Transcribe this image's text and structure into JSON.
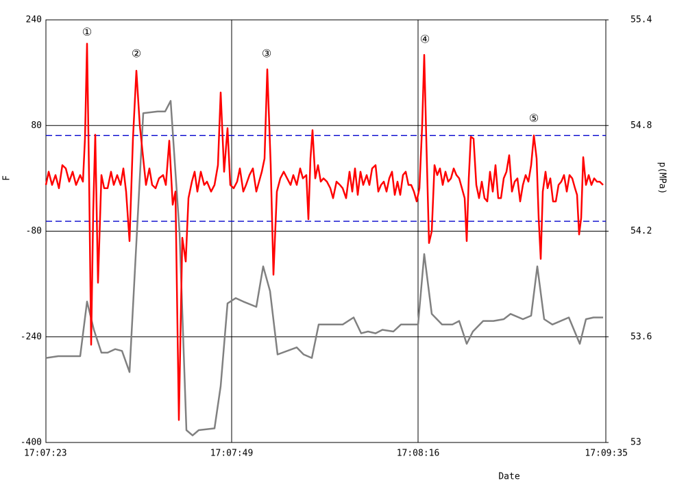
{
  "chart_data": {
    "type": "line",
    "x_label": "Date",
    "y_label": "F",
    "y2_label": "p(MPa)",
    "xlim": [
      0,
      817
    ],
    "xticks": [
      {
        "value": 0,
        "label": "17:07:23"
      },
      {
        "value": 271,
        "label": "17:07:49"
      },
      {
        "value": 543,
        "label": "17:08:16"
      },
      {
        "value": 817,
        "label": "17:09:35"
      }
    ],
    "ylim": [
      -400,
      240
    ],
    "yticks": [
      -400,
      -240,
      -80,
      80,
      240
    ],
    "y2lim": [
      53,
      55.4
    ],
    "y2ticks": [
      53,
      53.6,
      54.2,
      54.8,
      55.4
    ],
    "grid": true,
    "grid_color": "#000000",
    "reference_lines": [
      65,
      -65
    ],
    "reference_color": "#0000cc",
    "series": [
      {
        "color": "#ff0000",
        "x": [
          0,
          4,
          9,
          14,
          19,
          24,
          29,
          34,
          39,
          44,
          50,
          54,
          57,
          60,
          63,
          66,
          69,
          72,
          76,
          81,
          85,
          90,
          95,
          99,
          104,
          109,
          113,
          117,
          122,
          127,
          132,
          137,
          142,
          146,
          151,
          155,
          160,
          165,
          171,
          175,
          180,
          185,
          189,
          194,
          199,
          204,
          208,
          213,
          217,
          221,
          226,
          231,
          235,
          241,
          246,
          251,
          255,
          260,
          265,
          269,
          274,
          279,
          283,
          288,
          292,
          297,
          302,
          307,
          311,
          315,
          319,
          323,
          328,
          332,
          337,
          342,
          347,
          352,
          357,
          361,
          366,
          371,
          375,
          380,
          383,
          386,
          389,
          393,
          397,
          401,
          405,
          410,
          415,
          419,
          424,
          429,
          433,
          438,
          443,
          447,
          451,
          455,
          459,
          463,
          468,
          472,
          476,
          481,
          485,
          489,
          493,
          497,
          501,
          505,
          509,
          513,
          517,
          521,
          525,
          529,
          533,
          537,
          541,
          545,
          549,
          552,
          555,
          559,
          563,
          567,
          571,
          575,
          579,
          583,
          587,
          591,
          595,
          599,
          603,
          607,
          611,
          614,
          617,
          620,
          624,
          628,
          632,
          636,
          640,
          644,
          648,
          652,
          656,
          660,
          664,
          668,
          672,
          676,
          680,
          684,
          688,
          692,
          696,
          700,
          704,
          708,
          712,
          716,
          719,
          722,
          725,
          729,
          732,
          736,
          740,
          744,
          748,
          752,
          756,
          760,
          764,
          768,
          772,
          775,
          778,
          781,
          784,
          788,
          792,
          796,
          800,
          804,
          808,
          813
        ],
        "values": [
          -10,
          10,
          -10,
          5,
          -15,
          20,
          15,
          -5,
          10,
          -10,
          5,
          -5,
          60,
          204,
          0,
          -252,
          -50,
          66,
          -158,
          5,
          -15,
          -15,
          10,
          -10,
          5,
          -10,
          15,
          -20,
          -95,
          60,
          163,
          80,
          30,
          -10,
          15,
          -10,
          -15,
          0,
          5,
          -10,
          57,
          -40,
          -20,
          -366,
          -90,
          -126,
          -30,
          -5,
          10,
          -20,
          10,
          -10,
          -5,
          -20,
          -10,
          20,
          130,
          10,
          76,
          -10,
          -15,
          -5,
          15,
          -20,
          -10,
          5,
          15,
          -20,
          -5,
          10,
          30,
          165,
          20,
          -146,
          -20,
          0,
          10,
          0,
          -10,
          5,
          -10,
          15,
          0,
          5,
          -62,
          30,
          73,
          0,
          20,
          -5,
          0,
          -5,
          -15,
          -30,
          -5,
          -10,
          -15,
          -30,
          10,
          -20,
          15,
          -25,
          10,
          -10,
          5,
          -10,
          15,
          20,
          -20,
          -10,
          -5,
          -20,
          0,
          10,
          -25,
          -5,
          -25,
          5,
          10,
          -10,
          -10,
          -20,
          -35,
          -15,
          80,
          187,
          60,
          -98,
          -80,
          20,
          5,
          15,
          -10,
          10,
          -5,
          0,
          15,
          5,
          0,
          -15,
          -30,
          -95,
          0,
          63,
          60,
          -10,
          -30,
          -5,
          -30,
          -35,
          10,
          -20,
          20,
          -30,
          -30,
          0,
          10,
          35,
          -20,
          -5,
          0,
          -35,
          -10,
          5,
          -5,
          20,
          65,
          30,
          -60,
          -122,
          -20,
          10,
          -15,
          0,
          -35,
          -35,
          -10,
          -5,
          5,
          -20,
          5,
          0,
          -15,
          -25,
          -85,
          -60,
          32,
          -10,
          5,
          -10,
          0,
          -5,
          -5,
          -10
        ]
      },
      {
        "color": "#808080",
        "axis": "y2",
        "x": [
          0,
          18,
          50,
          60,
          70,
          81,
          90,
          101,
          111,
          122,
          142,
          163,
          174,
          182,
          195,
          205,
          214,
          223,
          246,
          255,
          265,
          277,
          288,
          307,
          317,
          327,
          338,
          366,
          376,
          388,
          398,
          423,
          433,
          449,
          460,
          470,
          481,
          491,
          507,
          518,
          543,
          552,
          563,
          578,
          593,
          603,
          614,
          623,
          638,
          653,
          668,
          678,
          696,
          708,
          717,
          727,
          739,
          763,
          779,
          788,
          799,
          813
        ],
        "values": [
          53.48,
          53.49,
          53.49,
          53.8,
          53.64,
          53.51,
          53.51,
          53.53,
          53.52,
          53.4,
          54.87,
          54.88,
          54.88,
          54.94,
          54.19,
          53.07,
          53.04,
          53.07,
          53.08,
          53.32,
          53.79,
          53.82,
          53.8,
          53.77,
          54.0,
          53.86,
          53.5,
          53.54,
          53.5,
          53.48,
          53.67,
          53.67,
          53.67,
          53.71,
          53.62,
          53.63,
          53.62,
          53.64,
          53.63,
          53.67,
          53.67,
          54.07,
          53.73,
          53.67,
          53.67,
          53.69,
          53.56,
          53.63,
          53.69,
          53.69,
          53.7,
          53.73,
          53.7,
          53.72,
          54.0,
          53.7,
          53.67,
          53.71,
          53.56,
          53.7,
          53.71,
          53.71
        ]
      }
    ],
    "annotations": [
      {
        "text": "①",
        "x": 60,
        "y": 221
      },
      {
        "text": "②",
        "x": 132,
        "y": 188
      },
      {
        "text": "③",
        "x": 322,
        "y": 188
      },
      {
        "text": "④",
        "x": 553,
        "y": 210
      },
      {
        "text": "⑤",
        "x": 712,
        "y": 90
      }
    ]
  }
}
